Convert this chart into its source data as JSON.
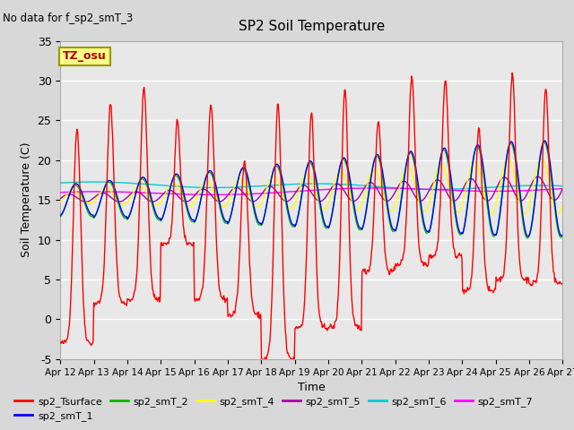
{
  "title": "SP2 Soil Temperature",
  "ylabel": "Soil Temperature (C)",
  "xlabel": "Time",
  "no_data_text": "No data for f_sp2_smT_3",
  "tz_label": "TZ_osu",
  "ylim": [
    -5,
    35
  ],
  "xlim": [
    0,
    15
  ],
  "x_tick_labels": [
    "Apr 12",
    "Apr 13",
    "Apr 14",
    "Apr 15",
    "Apr 16",
    "Apr 17",
    "Apr 18",
    "Apr 19",
    "Apr 20",
    "Apr 21",
    "Apr 22",
    "Apr 23",
    "Apr 24",
    "Apr 25",
    "Apr 26",
    "Apr 27"
  ],
  "series_order": [
    "sp2_Tsurface",
    "sp2_smT_1",
    "sp2_smT_2",
    "sp2_smT_4",
    "sp2_smT_5",
    "sp2_smT_6",
    "sp2_smT_7"
  ],
  "series": {
    "sp2_Tsurface": {
      "color": "#ff0000",
      "label": "sp2_Tsurface"
    },
    "sp2_smT_1": {
      "color": "#0000ff",
      "label": "sp2_smT_1"
    },
    "sp2_smT_2": {
      "color": "#00bb00",
      "label": "sp2_smT_2"
    },
    "sp2_smT_4": {
      "color": "#ffff00",
      "label": "sp2_smT_4"
    },
    "sp2_smT_5": {
      "color": "#aa00aa",
      "label": "sp2_smT_5"
    },
    "sp2_smT_6": {
      "color": "#00cccc",
      "label": "sp2_smT_6"
    },
    "sp2_smT_7": {
      "color": "#ff00ff",
      "label": "sp2_smT_7"
    }
  },
  "bg_color": "#d8d8d8",
  "plot_bg_color": "#e8e8e8",
  "grid_color": "#ffffff",
  "legend_order": [
    "sp2_Tsurface",
    "sp2_smT_1",
    "sp2_smT_2",
    "sp2_smT_4",
    "sp2_smT_5",
    "sp2_smT_6",
    "sp2_smT_7"
  ]
}
